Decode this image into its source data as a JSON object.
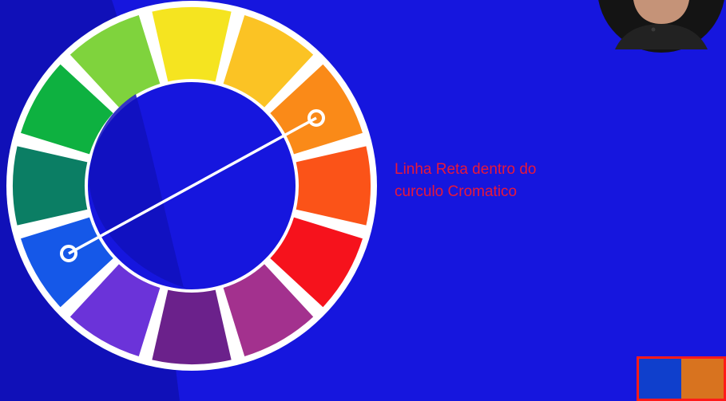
{
  "caption": {
    "line1": "Linha Reta dentro do",
    "line2": "curculo Cromatico"
  },
  "background_color": "#1616de",
  "shadow_color": "#1010b8",
  "caption_color": "#e8183a",
  "wheel": {
    "segments": [
      {
        "name": "yellow",
        "color": "#f5e420"
      },
      {
        "name": "yellow-orange",
        "color": "#fbc324"
      },
      {
        "name": "orange",
        "color": "#fa8a18"
      },
      {
        "name": "red-orange",
        "color": "#fb5318"
      },
      {
        "name": "red",
        "color": "#f6121c"
      },
      {
        "name": "red-violet",
        "color": "#a3318e"
      },
      {
        "name": "violet",
        "color": "#6b218b"
      },
      {
        "name": "blue-violet",
        "color": "#6b33d9"
      },
      {
        "name": "blue",
        "color": "#1558e8"
      },
      {
        "name": "blue-green",
        "color": "#0b7e64"
      },
      {
        "name": "green",
        "color": "#0eb140"
      },
      {
        "name": "yellow-green",
        "color": "#7fd33d"
      }
    ],
    "connector": {
      "from": "blue",
      "to": "orange"
    }
  },
  "swatches": [
    {
      "name": "blue",
      "color": "#0f3fcc"
    },
    {
      "name": "orange",
      "color": "#d8731f"
    }
  ],
  "presenter": {
    "kind": "webcam-avatar"
  }
}
